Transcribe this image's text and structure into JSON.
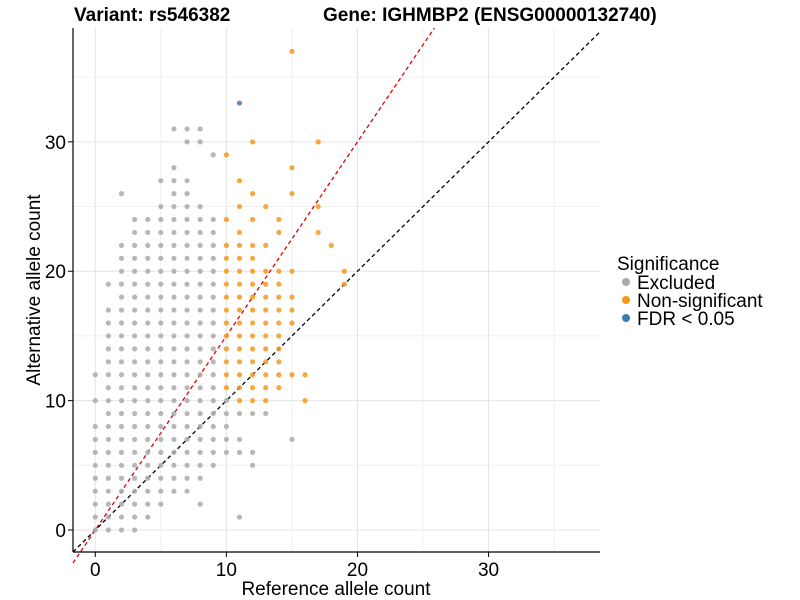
{
  "chart_data": {
    "type": "scatter",
    "title_left": "Variant: rs546382",
    "title_right": "Gene: IGHMBP2 (ENSG00000132740)",
    "xlabel": "Reference allele count",
    "ylabel": "Alternative allele count",
    "xlim": [
      -1.7,
      38.5
    ],
    "ylim": [
      -1.7,
      38.8
    ],
    "xticks": [
      0,
      10,
      20,
      30
    ],
    "yticks": [
      0,
      10,
      20,
      30
    ],
    "legend": {
      "title": "Significance",
      "items": [
        {
          "label": "Excluded",
          "color": "#aaaaaa"
        },
        {
          "label": "Non-significant",
          "color": "#f5991e"
        },
        {
          "label": "FDR < 0.05",
          "color": "#3e7bb3"
        }
      ]
    },
    "reference_lines": [
      {
        "name": "identity",
        "slope": 1,
        "intercept": 0,
        "color": "#000000"
      },
      {
        "name": "fit",
        "slope": 1.5,
        "intercept": 0,
        "color": "#e00000"
      }
    ],
    "series": [
      {
        "name": "Excluded",
        "color": "#aaaaaa",
        "points": [
          [
            0,
            12
          ],
          [
            0,
            10
          ],
          [
            0,
            8
          ],
          [
            0,
            7
          ],
          [
            0,
            6
          ],
          [
            0,
            5
          ],
          [
            0,
            4
          ],
          [
            0,
            3
          ],
          [
            0,
            2
          ],
          [
            0,
            1
          ],
          [
            0,
            0
          ],
          [
            1,
            19
          ],
          [
            1,
            17
          ],
          [
            1,
            16
          ],
          [
            1,
            15
          ],
          [
            1,
            14
          ],
          [
            1,
            13
          ],
          [
            1,
            12
          ],
          [
            1,
            11
          ],
          [
            1,
            10
          ],
          [
            1,
            9
          ],
          [
            1,
            8
          ],
          [
            1,
            7
          ],
          [
            1,
            6
          ],
          [
            1,
            5
          ],
          [
            1,
            4
          ],
          [
            1,
            3
          ],
          [
            1,
            2
          ],
          [
            1,
            1
          ],
          [
            1,
            0
          ],
          [
            2,
            26
          ],
          [
            2,
            22
          ],
          [
            2,
            21
          ],
          [
            2,
            20
          ],
          [
            2,
            19
          ],
          [
            2,
            18
          ],
          [
            2,
            17
          ],
          [
            2,
            16
          ],
          [
            2,
            15
          ],
          [
            2,
            14
          ],
          [
            2,
            13
          ],
          [
            2,
            12
          ],
          [
            2,
            11
          ],
          [
            2,
            10
          ],
          [
            2,
            9
          ],
          [
            2,
            8
          ],
          [
            2,
            7
          ],
          [
            2,
            6
          ],
          [
            2,
            5
          ],
          [
            2,
            4
          ],
          [
            2,
            3
          ],
          [
            2,
            2
          ],
          [
            2,
            1
          ],
          [
            2,
            0
          ],
          [
            3,
            24
          ],
          [
            3,
            23
          ],
          [
            3,
            22
          ],
          [
            3,
            21
          ],
          [
            3,
            20
          ],
          [
            3,
            19
          ],
          [
            3,
            18
          ],
          [
            3,
            17
          ],
          [
            3,
            16
          ],
          [
            3,
            15
          ],
          [
            3,
            14
          ],
          [
            3,
            13
          ],
          [
            3,
            12
          ],
          [
            3,
            11
          ],
          [
            3,
            10
          ],
          [
            3,
            9
          ],
          [
            3,
            8
          ],
          [
            3,
            7
          ],
          [
            3,
            6
          ],
          [
            3,
            5
          ],
          [
            3,
            4
          ],
          [
            3,
            3
          ],
          [
            3,
            2
          ],
          [
            3,
            1
          ],
          [
            3,
            0
          ],
          [
            4,
            24
          ],
          [
            4,
            23
          ],
          [
            4,
            22
          ],
          [
            4,
            21
          ],
          [
            4,
            20
          ],
          [
            4,
            19
          ],
          [
            4,
            18
          ],
          [
            4,
            17
          ],
          [
            4,
            16
          ],
          [
            4,
            15
          ],
          [
            4,
            14
          ],
          [
            4,
            13
          ],
          [
            4,
            12
          ],
          [
            4,
            11
          ],
          [
            4,
            10
          ],
          [
            4,
            9
          ],
          [
            4,
            8
          ],
          [
            4,
            7
          ],
          [
            4,
            6
          ],
          [
            4,
            5
          ],
          [
            4,
            4
          ],
          [
            4,
            3
          ],
          [
            4,
            2
          ],
          [
            4,
            1
          ],
          [
            5,
            27
          ],
          [
            5,
            25
          ],
          [
            5,
            24
          ],
          [
            5,
            23
          ],
          [
            5,
            22
          ],
          [
            5,
            21
          ],
          [
            5,
            20
          ],
          [
            5,
            19
          ],
          [
            5,
            18
          ],
          [
            5,
            17
          ],
          [
            5,
            16
          ],
          [
            5,
            15
          ],
          [
            5,
            14
          ],
          [
            5,
            13
          ],
          [
            5,
            12
          ],
          [
            5,
            11
          ],
          [
            5,
            10
          ],
          [
            5,
            9
          ],
          [
            5,
            8
          ],
          [
            5,
            7
          ],
          [
            5,
            6
          ],
          [
            5,
            5
          ],
          [
            5,
            4
          ],
          [
            5,
            3
          ],
          [
            5,
            2
          ],
          [
            6,
            31
          ],
          [
            6,
            28
          ],
          [
            6,
            27
          ],
          [
            6,
            26
          ],
          [
            6,
            25
          ],
          [
            6,
            24
          ],
          [
            6,
            23
          ],
          [
            6,
            22
          ],
          [
            6,
            21
          ],
          [
            6,
            20
          ],
          [
            6,
            19
          ],
          [
            6,
            18
          ],
          [
            6,
            17
          ],
          [
            6,
            16
          ],
          [
            6,
            15
          ],
          [
            6,
            14
          ],
          [
            6,
            13
          ],
          [
            6,
            12
          ],
          [
            6,
            11
          ],
          [
            6,
            10
          ],
          [
            6,
            9
          ],
          [
            6,
            8
          ],
          [
            6,
            7
          ],
          [
            6,
            6
          ],
          [
            6,
            5
          ],
          [
            6,
            4
          ],
          [
            6,
            3
          ],
          [
            7,
            31
          ],
          [
            7,
            30
          ],
          [
            7,
            27
          ],
          [
            7,
            26
          ],
          [
            7,
            25
          ],
          [
            7,
            24
          ],
          [
            7,
            23
          ],
          [
            7,
            22
          ],
          [
            7,
            21
          ],
          [
            7,
            20
          ],
          [
            7,
            19
          ],
          [
            7,
            18
          ],
          [
            7,
            17
          ],
          [
            7,
            16
          ],
          [
            7,
            15
          ],
          [
            7,
            14
          ],
          [
            7,
            13
          ],
          [
            7,
            12
          ],
          [
            7,
            11
          ],
          [
            7,
            10
          ],
          [
            7,
            9
          ],
          [
            7,
            8
          ],
          [
            7,
            7
          ],
          [
            7,
            6
          ],
          [
            7,
            5
          ],
          [
            7,
            4
          ],
          [
            7,
            3
          ],
          [
            8,
            31
          ],
          [
            8,
            30
          ],
          [
            8,
            25
          ],
          [
            8,
            24
          ],
          [
            8,
            23
          ],
          [
            8,
            22
          ],
          [
            8,
            21
          ],
          [
            8,
            20
          ],
          [
            8,
            19
          ],
          [
            8,
            18
          ],
          [
            8,
            17
          ],
          [
            8,
            16
          ],
          [
            8,
            15
          ],
          [
            8,
            14
          ],
          [
            8,
            13
          ],
          [
            8,
            12
          ],
          [
            8,
            11
          ],
          [
            8,
            10
          ],
          [
            8,
            9
          ],
          [
            8,
            8
          ],
          [
            8,
            7
          ],
          [
            8,
            6
          ],
          [
            8,
            5
          ],
          [
            8,
            4
          ],
          [
            8,
            2
          ],
          [
            9,
            29
          ],
          [
            9,
            24
          ],
          [
            9,
            23
          ],
          [
            9,
            22
          ],
          [
            9,
            21
          ],
          [
            9,
            20
          ],
          [
            9,
            19
          ],
          [
            9,
            18
          ],
          [
            9,
            17
          ],
          [
            9,
            16
          ],
          [
            9,
            15
          ],
          [
            9,
            14
          ],
          [
            9,
            13
          ],
          [
            9,
            12
          ],
          [
            9,
            11
          ],
          [
            9,
            10
          ],
          [
            9,
            9
          ],
          [
            9,
            8
          ],
          [
            9,
            7
          ],
          [
            9,
            6
          ],
          [
            9,
            5
          ],
          [
            10,
            10
          ],
          [
            10,
            9
          ],
          [
            10,
            8
          ],
          [
            10,
            7
          ],
          [
            10,
            6
          ],
          [
            11,
            9
          ],
          [
            11,
            7
          ],
          [
            11,
            6
          ],
          [
            11,
            1
          ],
          [
            12,
            9
          ],
          [
            12,
            6
          ],
          [
            12,
            5
          ],
          [
            13,
            9
          ],
          [
            15,
            7
          ]
        ]
      },
      {
        "name": "Non-significant",
        "color": "#f5991e",
        "points": [
          [
            10,
            29
          ],
          [
            10,
            24
          ],
          [
            10,
            22
          ],
          [
            10,
            21
          ],
          [
            10,
            20
          ],
          [
            10,
            19
          ],
          [
            10,
            18
          ],
          [
            10,
            17
          ],
          [
            10,
            16
          ],
          [
            10,
            15
          ],
          [
            10,
            14
          ],
          [
            10,
            13
          ],
          [
            10,
            12
          ],
          [
            10,
            11
          ],
          [
            11,
            27
          ],
          [
            11,
            25
          ],
          [
            11,
            23
          ],
          [
            11,
            22
          ],
          [
            11,
            21
          ],
          [
            11,
            20
          ],
          [
            11,
            19
          ],
          [
            11,
            18
          ],
          [
            11,
            17
          ],
          [
            11,
            16
          ],
          [
            11,
            15
          ],
          [
            11,
            14
          ],
          [
            11,
            13
          ],
          [
            11,
            12
          ],
          [
            11,
            11
          ],
          [
            11,
            10
          ],
          [
            12,
            30
          ],
          [
            12,
            26
          ],
          [
            12,
            24
          ],
          [
            12,
            22
          ],
          [
            12,
            21
          ],
          [
            12,
            20
          ],
          [
            12,
            19
          ],
          [
            12,
            18
          ],
          [
            12,
            17
          ],
          [
            12,
            16
          ],
          [
            12,
            15
          ],
          [
            12,
            14
          ],
          [
            12,
            13
          ],
          [
            12,
            12
          ],
          [
            12,
            11
          ],
          [
            12,
            10
          ],
          [
            13,
            25
          ],
          [
            13,
            22
          ],
          [
            13,
            20
          ],
          [
            13,
            19
          ],
          [
            13,
            18
          ],
          [
            13,
            17
          ],
          [
            13,
            16
          ],
          [
            13,
            15
          ],
          [
            13,
            14
          ],
          [
            13,
            13
          ],
          [
            13,
            12
          ],
          [
            13,
            11
          ],
          [
            13,
            10
          ],
          [
            14,
            24
          ],
          [
            14,
            23
          ],
          [
            14,
            20
          ],
          [
            14,
            19
          ],
          [
            14,
            18
          ],
          [
            14,
            17
          ],
          [
            14,
            16
          ],
          [
            14,
            15
          ],
          [
            14,
            14
          ],
          [
            14,
            13
          ],
          [
            14,
            12
          ],
          [
            14,
            11
          ],
          [
            15,
            37
          ],
          [
            15,
            28
          ],
          [
            15,
            26
          ],
          [
            15,
            20
          ],
          [
            15,
            18
          ],
          [
            15,
            17
          ],
          [
            15,
            16
          ],
          [
            15,
            12
          ],
          [
            16,
            12
          ],
          [
            16,
            10
          ],
          [
            17,
            30
          ],
          [
            17,
            25
          ],
          [
            17,
            23
          ],
          [
            18,
            22
          ],
          [
            19,
            20
          ],
          [
            19,
            19
          ]
        ]
      },
      {
        "name": "FDR < 0.05",
        "color": "#3e7bb3",
        "points": [
          [
            11,
            33
          ]
        ]
      }
    ]
  }
}
